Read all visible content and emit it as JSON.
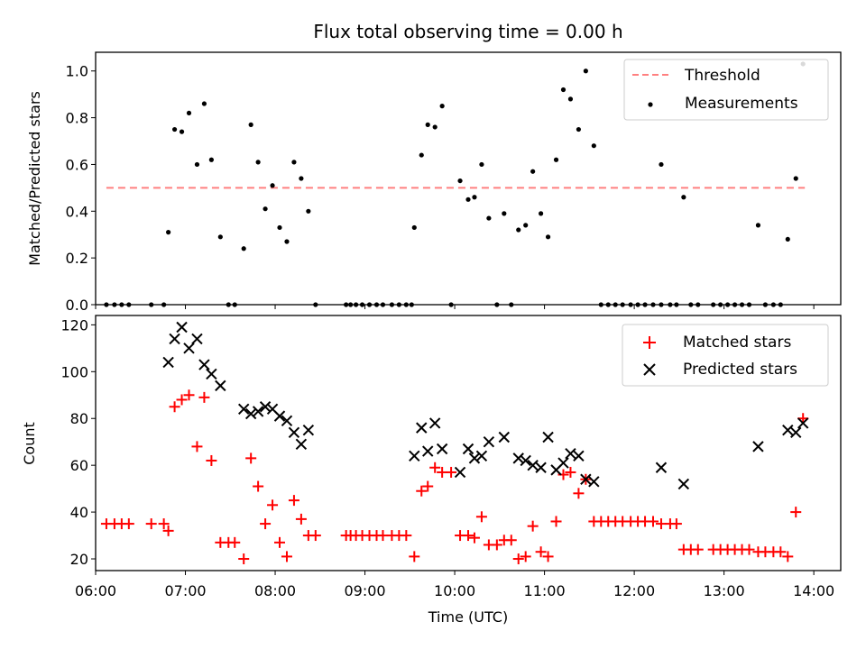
{
  "chart_data": [
    {
      "type": "scatter",
      "title": "Flux total observing time = 0.00 h",
      "ylabel": "Matched/Predicted stars",
      "xlim": [
        6.0,
        14.3
      ],
      "ylim": [
        0,
        1.08
      ],
      "yticks": [
        0.0,
        0.2,
        0.4,
        0.6,
        0.8,
        1.0
      ],
      "ytick_labels": [
        "0.0",
        "0.2",
        "0.4",
        "0.6",
        "0.8",
        "1.0"
      ],
      "legend_position": "top-right",
      "threshold": {
        "name": "Threshold",
        "value": 0.5,
        "x_range": [
          6.12,
          13.9
        ],
        "color": "#ff8080",
        "style": "dashed"
      },
      "series": [
        {
          "name": "Measurements",
          "marker": "dot",
          "color": "#000000",
          "points": [
            [
              6.12,
              0
            ],
            [
              6.21,
              0
            ],
            [
              6.29,
              0
            ],
            [
              6.37,
              0
            ],
            [
              6.62,
              0
            ],
            [
              6.76,
              0
            ],
            [
              6.81,
              0.31
            ],
            [
              6.88,
              0.75
            ],
            [
              6.96,
              0.74
            ],
            [
              7.04,
              0.82
            ],
            [
              7.13,
              0.6
            ],
            [
              7.21,
              0.86
            ],
            [
              7.29,
              0.62
            ],
            [
              7.39,
              0.29
            ],
            [
              7.48,
              0
            ],
            [
              7.55,
              0
            ],
            [
              7.65,
              0.24
            ],
            [
              7.73,
              0.77
            ],
            [
              7.81,
              0.61
            ],
            [
              7.89,
              0.41
            ],
            [
              7.97,
              0.51
            ],
            [
              8.05,
              0.33
            ],
            [
              8.13,
              0.27
            ],
            [
              8.21,
              0.61
            ],
            [
              8.29,
              0.54
            ],
            [
              8.37,
              0.4
            ],
            [
              8.45,
              0
            ],
            [
              8.79,
              0
            ],
            [
              8.84,
              0
            ],
            [
              8.9,
              0
            ],
            [
              8.97,
              0
            ],
            [
              9.05,
              0
            ],
            [
              9.13,
              0
            ],
            [
              9.2,
              0
            ],
            [
              9.3,
              0
            ],
            [
              9.38,
              0
            ],
            [
              9.46,
              0
            ],
            [
              9.52,
              0
            ],
            [
              9.55,
              0.33
            ],
            [
              9.63,
              0.64
            ],
            [
              9.7,
              0.77
            ],
            [
              9.78,
              0.76
            ],
            [
              9.86,
              0.85
            ],
            [
              9.96,
              0
            ],
            [
              10.06,
              0.53
            ],
            [
              10.15,
              0.45
            ],
            [
              10.22,
              0.46
            ],
            [
              10.3,
              0.6
            ],
            [
              10.38,
              0.37
            ],
            [
              10.47,
              0
            ],
            [
              10.55,
              0.39
            ],
            [
              10.63,
              0
            ],
            [
              10.71,
              0.32
            ],
            [
              10.79,
              0.34
            ],
            [
              10.87,
              0.57
            ],
            [
              10.96,
              0.39
            ],
            [
              11.04,
              0.29
            ],
            [
              11.13,
              0.62
            ],
            [
              11.21,
              0.92
            ],
            [
              11.29,
              0.88
            ],
            [
              11.38,
              0.75
            ],
            [
              11.46,
              1.0
            ],
            [
              11.55,
              0.68
            ],
            [
              11.63,
              0
            ],
            [
              11.71,
              0
            ],
            [
              11.79,
              0
            ],
            [
              11.87,
              0
            ],
            [
              11.96,
              0
            ],
            [
              12.04,
              0
            ],
            [
              12.12,
              0
            ],
            [
              12.21,
              0
            ],
            [
              12.3,
              0
            ],
            [
              12.3,
              0.6
            ],
            [
              12.4,
              0
            ],
            [
              12.47,
              0
            ],
            [
              12.55,
              0.46
            ],
            [
              12.63,
              0
            ],
            [
              12.71,
              0
            ],
            [
              12.88,
              0
            ],
            [
              12.96,
              0
            ],
            [
              13.04,
              0
            ],
            [
              13.12,
              0
            ],
            [
              13.2,
              0
            ],
            [
              13.28,
              0
            ],
            [
              13.38,
              0.34
            ],
            [
              13.46,
              0
            ],
            [
              13.55,
              0
            ],
            [
              13.63,
              0
            ],
            [
              13.71,
              0.28
            ],
            [
              13.8,
              0.54
            ],
            [
              13.88,
              1.03
            ]
          ]
        }
      ]
    },
    {
      "type": "scatter",
      "xlabel": "Time (UTC)",
      "ylabel": "Count",
      "xlim": [
        6.0,
        14.3
      ],
      "ylim": [
        15,
        124
      ],
      "xticks": [
        6,
        7,
        8,
        9,
        10,
        11,
        12,
        13,
        14
      ],
      "xtick_labels": [
        "06:00",
        "07:00",
        "08:00",
        "09:00",
        "10:00",
        "11:00",
        "12:00",
        "13:00",
        "14:00"
      ],
      "yticks": [
        20,
        40,
        60,
        80,
        100,
        120
      ],
      "ytick_labels": [
        "20",
        "40",
        "60",
        "80",
        "100",
        "120"
      ],
      "legend_position": "top-right",
      "series": [
        {
          "name": "Matched stars",
          "marker": "plus",
          "color": "#ff0000",
          "points": [
            [
              6.12,
              35
            ],
            [
              6.21,
              35
            ],
            [
              6.29,
              35
            ],
            [
              6.37,
              35
            ],
            [
              6.62,
              35
            ],
            [
              6.76,
              35
            ],
            [
              6.81,
              32
            ],
            [
              6.88,
              85
            ],
            [
              6.96,
              88
            ],
            [
              7.04,
              90
            ],
            [
              7.13,
              68
            ],
            [
              7.21,
              89
            ],
            [
              7.29,
              62
            ],
            [
              7.39,
              27
            ],
            [
              7.48,
              27
            ],
            [
              7.55,
              27
            ],
            [
              7.65,
              20
            ],
            [
              7.73,
              63
            ],
            [
              7.81,
              51
            ],
            [
              7.89,
              35
            ],
            [
              7.97,
              43
            ],
            [
              8.05,
              27
            ],
            [
              8.13,
              21
            ],
            [
              8.21,
              45
            ],
            [
              8.29,
              37
            ],
            [
              8.37,
              30
            ],
            [
              8.45,
              30
            ],
            [
              8.79,
              30
            ],
            [
              8.84,
              30
            ],
            [
              8.9,
              30
            ],
            [
              8.97,
              30
            ],
            [
              9.05,
              30
            ],
            [
              9.13,
              30
            ],
            [
              9.2,
              30
            ],
            [
              9.3,
              30
            ],
            [
              9.38,
              30
            ],
            [
              9.46,
              30
            ],
            [
              9.55,
              21
            ],
            [
              9.63,
              49
            ],
            [
              9.7,
              51
            ],
            [
              9.78,
              59
            ],
            [
              9.86,
              57
            ],
            [
              9.96,
              57
            ],
            [
              10.06,
              30
            ],
            [
              10.15,
              30
            ],
            [
              10.22,
              29
            ],
            [
              10.3,
              38
            ],
            [
              10.38,
              26
            ],
            [
              10.47,
              26
            ],
            [
              10.55,
              28
            ],
            [
              10.63,
              28
            ],
            [
              10.71,
              20
            ],
            [
              10.79,
              21
            ],
            [
              10.87,
              34
            ],
            [
              10.96,
              23
            ],
            [
              11.04,
              21
            ],
            [
              11.13,
              36
            ],
            [
              11.21,
              56
            ],
            [
              11.29,
              57
            ],
            [
              11.38,
              48
            ],
            [
              11.46,
              54
            ],
            [
              11.55,
              36
            ],
            [
              11.63,
              36
            ],
            [
              11.71,
              36
            ],
            [
              11.79,
              36
            ],
            [
              11.87,
              36
            ],
            [
              11.96,
              36
            ],
            [
              12.04,
              36
            ],
            [
              12.12,
              36
            ],
            [
              12.21,
              36
            ],
            [
              12.3,
              35
            ],
            [
              12.4,
              35
            ],
            [
              12.47,
              35
            ],
            [
              12.55,
              24
            ],
            [
              12.63,
              24
            ],
            [
              12.71,
              24
            ],
            [
              12.88,
              24
            ],
            [
              12.96,
              24
            ],
            [
              13.04,
              24
            ],
            [
              13.12,
              24
            ],
            [
              13.2,
              24
            ],
            [
              13.28,
              24
            ],
            [
              13.38,
              23
            ],
            [
              13.46,
              23
            ],
            [
              13.55,
              23
            ],
            [
              13.63,
              23
            ],
            [
              13.71,
              21
            ],
            [
              13.8,
              40
            ],
            [
              13.88,
              80
            ]
          ]
        },
        {
          "name": "Predicted stars",
          "marker": "x",
          "color": "#000000",
          "points": [
            [
              6.81,
              104
            ],
            [
              6.88,
              114
            ],
            [
              6.96,
              119
            ],
            [
              7.04,
              110
            ],
            [
              7.13,
              114
            ],
            [
              7.21,
              103
            ],
            [
              7.29,
              99
            ],
            [
              7.39,
              94
            ],
            [
              7.65,
              84
            ],
            [
              7.73,
              82
            ],
            [
              7.81,
              83
            ],
            [
              7.89,
              85
            ],
            [
              7.97,
              84
            ],
            [
              8.05,
              81
            ],
            [
              8.13,
              79
            ],
            [
              8.21,
              74
            ],
            [
              8.29,
              69
            ],
            [
              8.37,
              75
            ],
            [
              9.55,
              64
            ],
            [
              9.63,
              76
            ],
            [
              9.7,
              66
            ],
            [
              9.78,
              78
            ],
            [
              9.86,
              67
            ],
            [
              10.06,
              57
            ],
            [
              10.15,
              67
            ],
            [
              10.22,
              63
            ],
            [
              10.3,
              64
            ],
            [
              10.38,
              70
            ],
            [
              10.55,
              72
            ],
            [
              10.71,
              63
            ],
            [
              10.79,
              62
            ],
            [
              10.87,
              60
            ],
            [
              10.96,
              59
            ],
            [
              11.04,
              72
            ],
            [
              11.13,
              58
            ],
            [
              11.21,
              61
            ],
            [
              11.29,
              65
            ],
            [
              11.38,
              64
            ],
            [
              11.46,
              54
            ],
            [
              11.55,
              53
            ],
            [
              12.3,
              59
            ],
            [
              12.55,
              52
            ],
            [
              13.38,
              68
            ],
            [
              13.71,
              75
            ],
            [
              13.8,
              74
            ],
            [
              13.88,
              78
            ]
          ]
        }
      ]
    }
  ]
}
